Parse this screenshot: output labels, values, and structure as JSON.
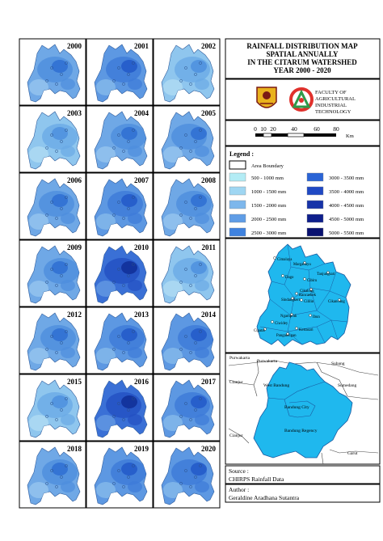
{
  "years": [
    "2000",
    "2001",
    "2002",
    "2003",
    "2004",
    "2005",
    "2006",
    "2007",
    "2008",
    "2009",
    "2010",
    "2011",
    "2012",
    "2013",
    "2014",
    "2015",
    "2016",
    "2017",
    "2018",
    "2019",
    "2020"
  ],
  "year_intensity": [
    1,
    2,
    0,
    0,
    1,
    1,
    1,
    2,
    1,
    1,
    4,
    0,
    1,
    2,
    2,
    0,
    4,
    2,
    1,
    2,
    2
  ],
  "title": {
    "line1": "RAINFALL DISTRIBUTION MAP",
    "line2": "SPATIAL ANNUALLY",
    "line3": "IN THE CITARUM WATERSHED",
    "line4": "YEAR 2000 - 2020"
  },
  "institution": {
    "line1": "FACULTY OF",
    "line2": "AGRICULTURAL",
    "line3": "INDUSTRIAL",
    "line4": "TECHNOLOGY"
  },
  "scale": {
    "ticks": [
      "0",
      "10",
      "20",
      "40",
      "60",
      "80"
    ],
    "unit": "Km"
  },
  "legend": {
    "title": "Legend :",
    "boundary": "Area Boundary",
    "classes": [
      {
        "label": "500 - 1000 mm",
        "color": "#b3ecf5"
      },
      {
        "label": "1000 - 1500 mm",
        "color": "#9fd6f2"
      },
      {
        "label": "1500 - 2000 mm",
        "color": "#7db7ec"
      },
      {
        "label": "2000 - 2500 mm",
        "color": "#5f9de6"
      },
      {
        "label": "2500 - 3000 mm",
        "color": "#3f82df"
      },
      {
        "label": "3000 - 3500 mm",
        "color": "#2a64d6"
      },
      {
        "label": "3500 - 4000 mm",
        "color": "#1f49c4"
      },
      {
        "label": "4000 - 4500 mm",
        "color": "#1733a8"
      },
      {
        "label": "4500 - 5000 mm",
        "color": "#0e1f8c"
      },
      {
        "label": "5000 - 5500 mm",
        "color": "#081170"
      }
    ]
  },
  "district_labels": [
    "Cimalaya",
    "Margahayu",
    "Dago",
    "Tanjungsari",
    "Cibiru",
    "Cikalong",
    "Rancaekek",
    "Sindangkerta",
    "Cililin",
    "Cikancung",
    "Ibun",
    "Ngamprah",
    "Ciwidey",
    "Cipatat",
    "Kertasari",
    "Pangalengan"
  ],
  "location": {
    "labels": [
      "Purwakarta",
      "Purwakarta",
      "Subang",
      "Cianjur",
      "West Bandung",
      "Sumedang",
      "Bandung City",
      "Bandung Regency",
      "Cianjur",
      "Garut"
    ]
  },
  "source": {
    "heading": "Source :",
    "value": "CHIRPS Rainfall Data"
  },
  "author": {
    "heading": "Author :",
    "value": "Geraldine Aradhana Sutantra"
  },
  "colors": {
    "watershed_fill": "#1fb8ee",
    "map_frame": "#000000"
  }
}
